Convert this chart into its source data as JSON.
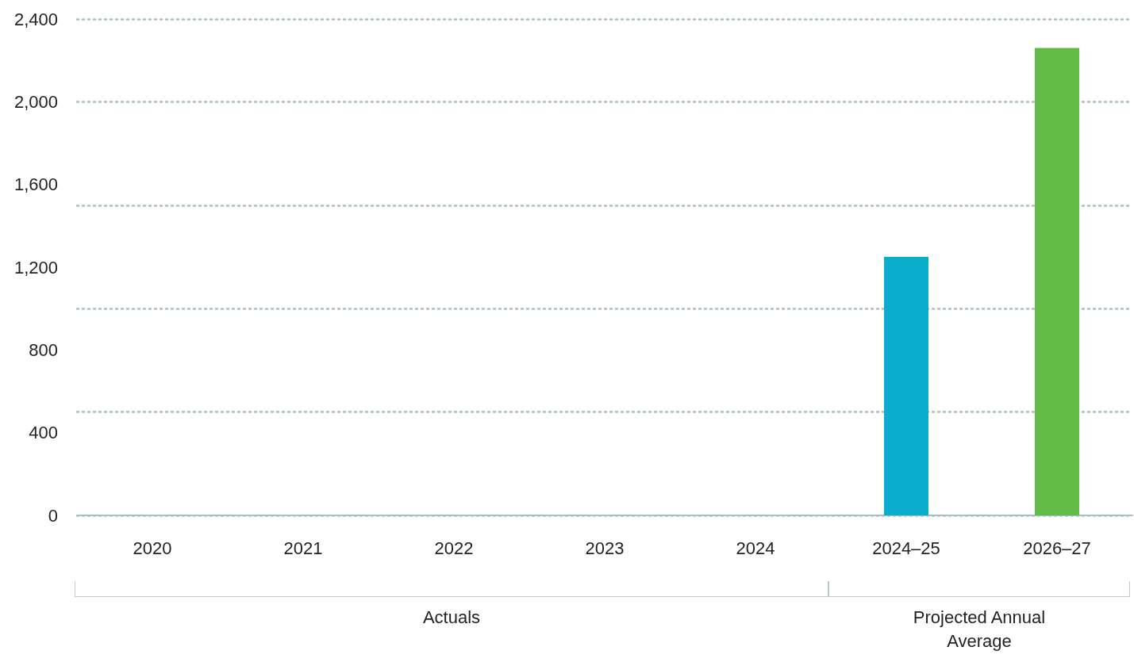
{
  "chart_data": {
    "type": "bar",
    "categories": [
      "2020",
      "2021",
      "2022",
      "2023",
      "2024",
      "2024–25",
      "2026–27"
    ],
    "values": [
      0,
      0,
      0,
      0,
      0,
      1250,
      2260
    ],
    "colors": [
      "#0aadcc",
      "#0aadcc",
      "#0aadcc",
      "#0aadcc",
      "#0aadcc",
      "#0aadcc",
      "#63bb47"
    ],
    "ylim": [
      0,
      2400
    ],
    "yticks": [
      0,
      400,
      800,
      {
        "value": 1200,
        "label": "1,200"
      },
      {
        "value": 1600,
        "label": "1,600"
      },
      {
        "value": 2000,
        "label": "2,000"
      },
      {
        "value": 2400,
        "label": "2,400"
      }
    ],
    "grid": "y",
    "annotations": [
      "Actuals",
      "Projected Annual Average"
    ]
  }
}
